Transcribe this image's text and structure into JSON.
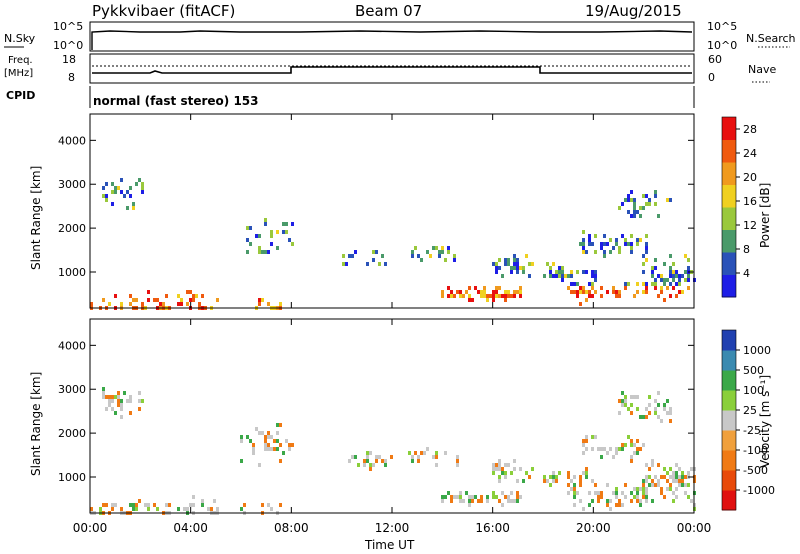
{
  "header": {
    "station": "Pykkvibaer (fitACF)",
    "beam": "Beam 07",
    "date": "19/Aug/2015"
  },
  "top_panels": {
    "nsky_label": "N.Sky",
    "nsky_ticks": [
      "10^5",
      "10^0"
    ],
    "nsearch_label": "N.Search",
    "nsearch_ticks": [
      "10^5",
      "10^0"
    ],
    "freq_label_1": "Freq.",
    "freq_label_2": "[MHz]",
    "freq_ticks": [
      "18",
      "8"
    ],
    "nave_label": "Nave",
    "nave_ticks": [
      "60",
      "0"
    ],
    "cpid_label": "CPID",
    "cpid_value": "normal (fast stereo) 153"
  },
  "xaxis": {
    "label": "Time UT",
    "ticks": [
      "00:00",
      "04:00",
      "08:00",
      "12:00",
      "16:00",
      "20:00",
      "00:00"
    ]
  },
  "chart_data": [
    {
      "type": "heatmap",
      "title": "",
      "xlabel": "Time UT",
      "ylabel": "Slant Range [km]",
      "x_range_hours": [
        0,
        24
      ],
      "ylim": [
        180,
        4600
      ],
      "yticks": [
        "1000",
        "2000",
        "3000",
        "4000"
      ],
      "colorbar": {
        "label": "Power [dB]",
        "ticks": [
          "4",
          "8",
          "12",
          "16",
          "20",
          "24",
          "28"
        ],
        "range": [
          0,
          30
        ],
        "colors": [
          "#1e1ee6",
          "#2a52b8",
          "#4a9a6a",
          "#9ac83c",
          "#f0d020",
          "#f09a1e",
          "#f05a0f",
          "#e81010"
        ]
      }
    },
    {
      "type": "heatmap",
      "title": "",
      "xlabel": "Time UT",
      "ylabel": "Slant Range [km]",
      "x_range_hours": [
        0,
        24
      ],
      "ylim": [
        180,
        4600
      ],
      "yticks": [
        "1000",
        "2000",
        "3000",
        "4000"
      ],
      "colorbar": {
        "label": "Velocity [m s⁻¹]",
        "ticks": [
          "1000",
          "500",
          "100",
          "25",
          "-25",
          "-100",
          "-500",
          "-1000"
        ],
        "colors": [
          "#2040b0",
          "#3a8ab0",
          "#3aa848",
          "#8acf3a",
          "#c8c8c8",
          "#f0a03c",
          "#f07a14",
          "#e84a0a",
          "#e01010"
        ]
      }
    }
  ]
}
